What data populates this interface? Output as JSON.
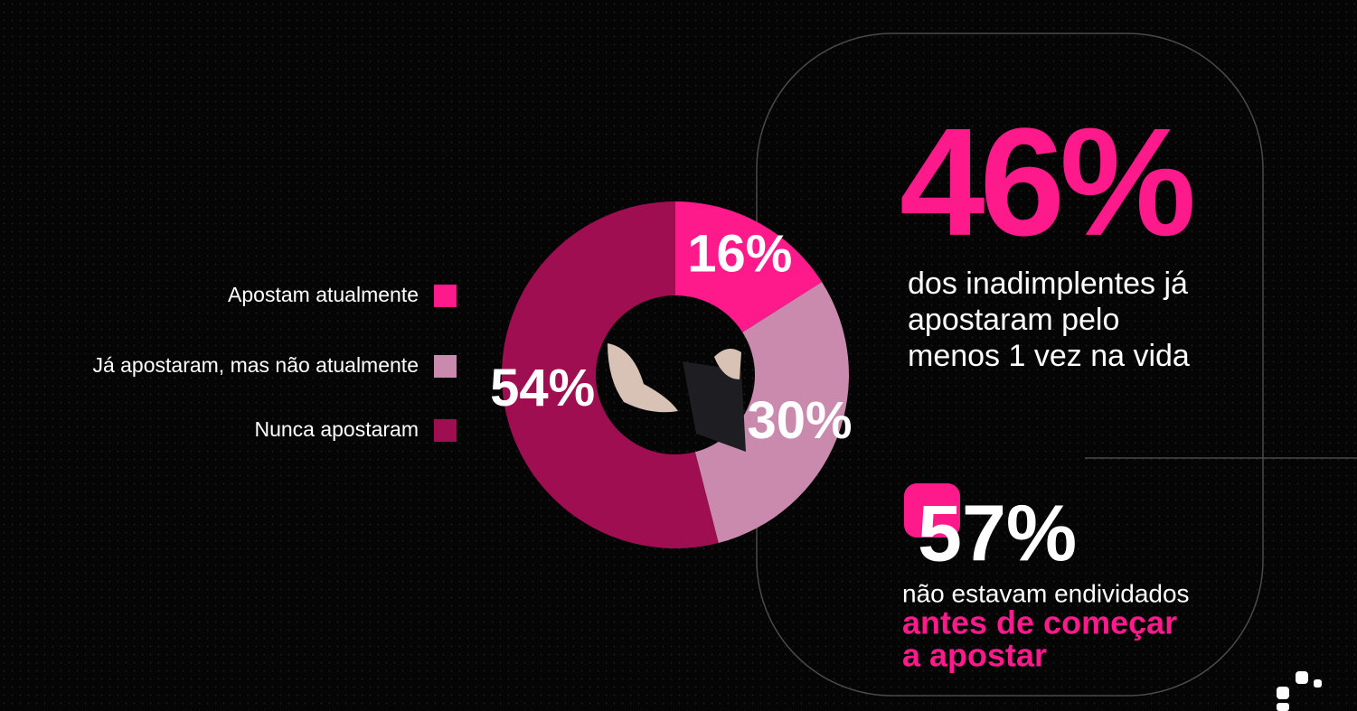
{
  "chart_data": {
    "type": "donut",
    "categories": [
      "Apostam atualmente",
      "Já apostaram, mas não atualmente",
      "Nunca apostaram"
    ],
    "values": [
      16,
      30,
      54
    ],
    "value_labels": [
      "16%",
      "30%",
      "54%"
    ],
    "colors": [
      "#ff1a8c",
      "#c98aae",
      "#9e0e50"
    ]
  },
  "stat_1": {
    "value": "46%",
    "lines": [
      "dos inadimplentes já",
      "apostaram pelo",
      "menos 1 vez na vida"
    ]
  },
  "stat_2": {
    "value": "57%",
    "text": "não estavam endividados",
    "highlight_lines": [
      "antes de começar",
      "a apostar"
    ]
  }
}
